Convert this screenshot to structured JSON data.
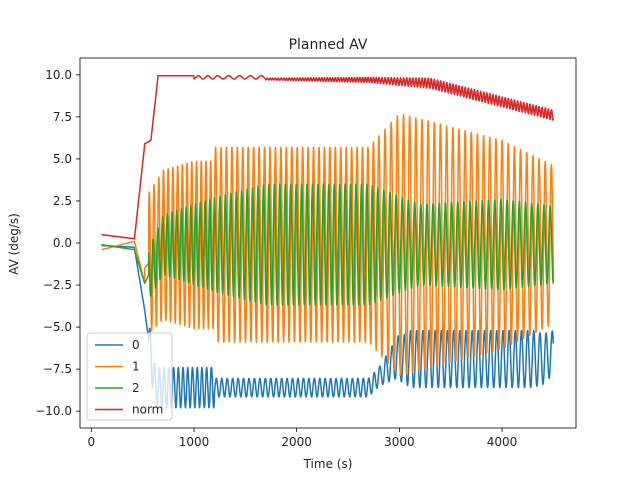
{
  "chart_data": {
    "type": "line",
    "title": "Planned AV",
    "xlabel": "Time (s)",
    "ylabel": "AV (deg/s)",
    "xlim": [
      -110,
      4720
    ],
    "ylim": [
      -11.0,
      11.0
    ],
    "xticks": [
      0,
      1000,
      2000,
      3000,
      4000
    ],
    "yticks": [
      -10.0,
      -7.5,
      -5.0,
      -2.5,
      0.0,
      2.5,
      5.0,
      7.5,
      10.0
    ],
    "xtick_labels": [
      "0",
      "1000",
      "2000",
      "3000",
      "4000"
    ],
    "ytick_labels": [
      "−10.0",
      "−7.5",
      "−5.0",
      "−2.5",
      "0.0",
      "2.5",
      "5.0",
      "7.5",
      "10.0"
    ],
    "grid": false,
    "legend_position": "lower-left",
    "x_range": [
      100,
      4500
    ],
    "series": [
      {
        "name": "0",
        "color": "#1f77b4",
        "description": "low oscillation, center around -8 to -9 deg/s after 550 s",
        "keypoints": [
          [
            100,
            -0.1
          ],
          [
            300,
            -0.2
          ],
          [
            420,
            -0.3
          ],
          [
            500,
            -2.5
          ],
          [
            550,
            -4.5
          ],
          [
            700,
            -8.5
          ],
          [
            1200,
            -8.7
          ],
          [
            2500,
            -8.4
          ],
          [
            2800,
            -8.0
          ],
          [
            3000,
            -6.8
          ],
          [
            3500,
            -7.0
          ],
          [
            4000,
            -7.0
          ],
          [
            4500,
            -6.5
          ]
        ]
      },
      {
        "name": "1",
        "color": "#ff7f0e",
        "description": "large oscillation, amplitude ~5-8 deg/s",
        "keypoints": [
          [
            100,
            -0.4
          ],
          [
            300,
            0.0
          ],
          [
            420,
            0.1
          ],
          [
            500,
            -3.5
          ],
          [
            550,
            4.5
          ],
          [
            1200,
            5.5
          ],
          [
            2000,
            5.5
          ],
          [
            2700,
            5.5
          ],
          [
            3000,
            8.0
          ],
          [
            3500,
            7.0
          ],
          [
            4000,
            6.0
          ],
          [
            4500,
            4.0
          ]
        ]
      },
      {
        "name": "2",
        "color": "#2ca02c",
        "description": "medium oscillation, amplitude ~2-4 deg/s",
        "keypoints": [
          [
            100,
            -0.1
          ],
          [
            300,
            -0.2
          ],
          [
            420,
            -0.4
          ],
          [
            500,
            -2.5
          ],
          [
            550,
            1.0
          ],
          [
            1200,
            2.5
          ],
          [
            2000,
            3.5
          ],
          [
            2700,
            3.5
          ],
          [
            3000,
            2.5
          ],
          [
            3500,
            2.0
          ],
          [
            4000,
            2.5
          ],
          [
            4500,
            0.3
          ]
        ]
      },
      {
        "name": "norm",
        "color": "#d62728",
        "description": "norm rises to ~10, then slowly oscillates down to ~7.5",
        "keypoints": [
          [
            100,
            0.5
          ],
          [
            300,
            0.25
          ],
          [
            420,
            0.25
          ],
          [
            500,
            6.0
          ],
          [
            560,
            6.1
          ],
          [
            600,
            8.0
          ],
          [
            650,
            9.9
          ],
          [
            1000,
            9.9
          ],
          [
            1700,
            9.9
          ],
          [
            2000,
            9.8
          ],
          [
            2700,
            9.75
          ],
          [
            3000,
            9.7
          ],
          [
            3500,
            9.3
          ],
          [
            4000,
            8.7
          ],
          [
            4500,
            7.5
          ]
        ]
      }
    ]
  }
}
